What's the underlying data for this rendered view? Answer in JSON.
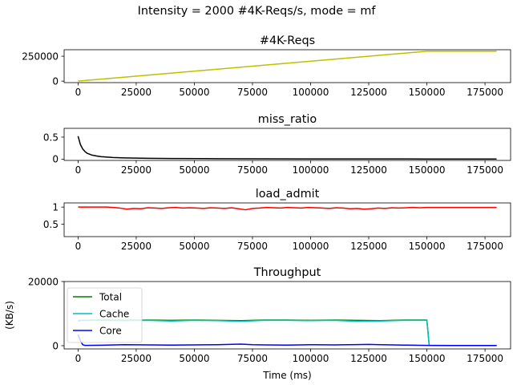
{
  "figure": {
    "suptitle": "Intensity = 2000 #4K-Reqs/s, mode = mf"
  },
  "colors": {
    "reqs": "#bfbf00",
    "miss": "#000000",
    "admit": "#ff0000",
    "total": "#008000",
    "cache": "#00bfbf",
    "core": "#0000ff"
  },
  "chart_data": [
    {
      "type": "line",
      "title": "#4K-Reqs",
      "xlim": [
        -6000,
        186000
      ],
      "ylim": [
        -15000,
        315000
      ],
      "xticks": [
        0,
        25000,
        50000,
        75000,
        100000,
        125000,
        150000,
        175000
      ],
      "yticks": [
        0,
        250000
      ],
      "series": [
        {
          "color": "#bfbf00",
          "x": [
            0,
            150000,
            180000
          ],
          "y": [
            0,
            300000,
            300000
          ]
        }
      ]
    },
    {
      "type": "line",
      "title": "miss_ratio",
      "xlim": [
        -6000,
        186000
      ],
      "ylim": [
        -0.03,
        0.7
      ],
      "xticks": [
        0,
        25000,
        50000,
        75000,
        100000,
        125000,
        150000,
        175000
      ],
      "yticks": [
        0.0,
        0.5
      ],
      "series": [
        {
          "color": "#000000",
          "x": [
            0,
            1000,
            2000,
            3000,
            4000,
            6000,
            8000,
            10000,
            15000,
            20000,
            30000,
            40000,
            60000,
            80000,
            100000,
            130000,
            150000,
            180000
          ],
          "y": [
            0.52,
            0.33,
            0.23,
            0.17,
            0.13,
            0.09,
            0.07,
            0.055,
            0.037,
            0.028,
            0.019,
            0.014,
            0.009,
            0.007,
            0.005,
            0.004,
            0.003,
            0.003
          ]
        }
      ]
    },
    {
      "type": "line",
      "title": "load_admit",
      "xlim": [
        -6000,
        186000
      ],
      "ylim": [
        0.14,
        1.12
      ],
      "xticks": [
        0,
        25000,
        50000,
        75000,
        100000,
        125000,
        150000,
        175000
      ],
      "yticks": [
        0.5,
        1.0
      ],
      "series": [
        {
          "color": "#ff0000",
          "x": [
            0,
            12000,
            15000,
            18000,
            21000,
            24000,
            27000,
            30000,
            33000,
            36000,
            39000,
            42000,
            45000,
            48000,
            51000,
            54000,
            57000,
            60000,
            63000,
            66000,
            69000,
            72000,
            75000,
            78000,
            81000,
            84000,
            87000,
            90000,
            93000,
            96000,
            99000,
            102000,
            105000,
            108000,
            111000,
            114000,
            117000,
            120000,
            123000,
            126000,
            129000,
            132000,
            135000,
            138000,
            141000,
            144000,
            147000,
            150000,
            160000,
            170000,
            180000
          ],
          "y": [
            1.0,
            1.0,
            0.99,
            0.97,
            0.94,
            0.96,
            0.95,
            0.98,
            0.97,
            0.96,
            0.98,
            0.99,
            0.97,
            0.98,
            0.97,
            0.96,
            0.98,
            0.97,
            0.96,
            0.98,
            0.95,
            0.92,
            0.96,
            0.97,
            0.99,
            0.98,
            0.97,
            0.99,
            0.98,
            0.97,
            0.99,
            0.98,
            0.97,
            0.96,
            0.98,
            0.97,
            0.95,
            0.96,
            0.94,
            0.95,
            0.97,
            0.96,
            0.98,
            0.97,
            0.98,
            0.99,
            0.98,
            0.99,
            0.99,
            0.99,
            0.99
          ]
        }
      ]
    },
    {
      "type": "line",
      "title": "Throughput",
      "xlabel": "Time (ms)",
      "ylabel": "(KB/s)",
      "xlim": [
        -6000,
        186000
      ],
      "ylim": [
        -1000,
        20000
      ],
      "xticks": [
        0,
        25000,
        50000,
        75000,
        100000,
        125000,
        150000,
        175000
      ],
      "yticks": [
        0,
        20000
      ],
      "legend": "top-left",
      "series": [
        {
          "name": "Total",
          "color": "#008000",
          "x": [
            0,
            1500,
            10000,
            20000,
            30000,
            40000,
            50000,
            60000,
            70000,
            80000,
            90000,
            100000,
            110000,
            120000,
            130000,
            140000,
            149000,
            150000,
            151000,
            160000,
            170000,
            180000
          ],
          "y": [
            7800,
            7900,
            8000,
            7900,
            8000,
            7900,
            8000,
            7900,
            7800,
            8000,
            8000,
            7900,
            8000,
            7900,
            7800,
            8000,
            8000,
            8000,
            100,
            50,
            50,
            50
          ]
        },
        {
          "name": "Cache",
          "color": "#00bfbf",
          "x": [
            0,
            1500,
            10000,
            20000,
            30000,
            40000,
            50000,
            60000,
            70000,
            80000,
            90000,
            100000,
            110000,
            120000,
            130000,
            140000,
            149000,
            150000,
            151000,
            160000,
            170000,
            180000
          ],
          "y": [
            7600,
            7900,
            7900,
            7800,
            7900,
            7700,
            7900,
            7800,
            7600,
            7900,
            7900,
            7800,
            7900,
            7600,
            7700,
            7900,
            7900,
            7900,
            50,
            30,
            30,
            30
          ]
        },
        {
          "name": "Core",
          "color": "#0000ff",
          "x": [
            0,
            1000,
            2000,
            3000,
            10000,
            20000,
            30000,
            40000,
            50000,
            60000,
            70000,
            75000,
            80000,
            90000,
            100000,
            110000,
            120000,
            125000,
            130000,
            140000,
            150000,
            160000,
            170000,
            180000
          ],
          "y": [
            3500,
            1500,
            300,
            100,
            150,
            300,
            250,
            200,
            250,
            300,
            500,
            300,
            250,
            200,
            300,
            250,
            350,
            400,
            300,
            200,
            100,
            50,
            50,
            50
          ]
        }
      ]
    }
  ]
}
